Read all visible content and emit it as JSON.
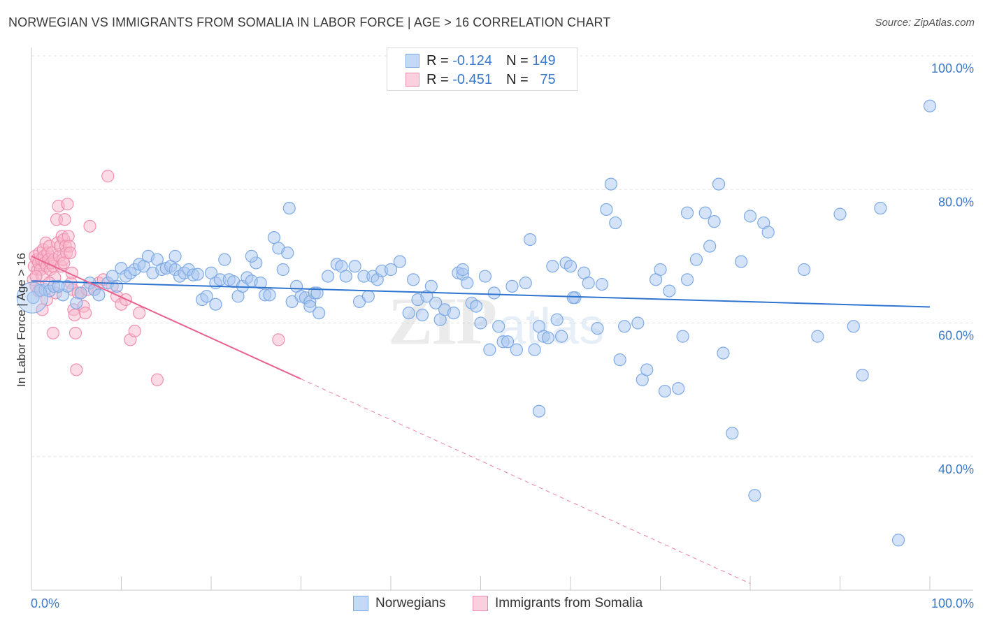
{
  "header": {
    "title": "NORWEGIAN VS IMMIGRANTS FROM SOMALIA IN LABOR FORCE | AGE > 16 CORRELATION CHART",
    "source": "Source: ZipAtlas.com"
  },
  "legend": {
    "rows": [
      {
        "r_label": "R = ",
        "r_value": "-0.124",
        "n_label": "N = ",
        "n_value": "149"
      },
      {
        "r_label": "R = ",
        "r_value": "-0.451",
        "n_label": "N = ",
        "n_value": "75"
      }
    ]
  },
  "bottom_legend": {
    "items": [
      {
        "label": "Norwegians"
      },
      {
        "label": "Immigrants from Somalia"
      }
    ]
  },
  "colors": {
    "blue_fill": "#a9c8f0",
    "blue_stroke": "#7eaae6",
    "blue_line": "#2f74cf",
    "pink_fill": "#f7b7cc",
    "pink_stroke": "#f090b0",
    "pink_line": "#e8638f",
    "grid": "#e3e3e3",
    "tick_text": "#3b78c9"
  },
  "chart_data": {
    "type": "scatter",
    "title": "NORWEGIAN VS IMMIGRANTS FROM SOMALIA IN LABOR FORCE | AGE > 16 CORRELATION CHART",
    "ylabel": "In Labor Force | Age > 16",
    "xlabel": "",
    "xlim": [
      0,
      100
    ],
    "ylim": [
      20,
      100
    ],
    "y_ticks": [
      {
        "value": 40,
        "label": "40.0%"
      },
      {
        "value": 60,
        "label": "60.0%"
      },
      {
        "value": 80,
        "label": "80.0%"
      },
      {
        "value": 100,
        "label": "100.0%"
      }
    ],
    "x_tick_labels": [
      {
        "value": 0,
        "label": "0.0%"
      },
      {
        "value": 100,
        "label": "100.0%"
      }
    ],
    "grid": true,
    "legend_placement": "top-center",
    "series": [
      {
        "name": "Norwegians",
        "R": -0.124,
        "N": 149,
        "trend": {
          "x": [
            0,
            100
          ],
          "y": [
            66.3,
            62.4
          ],
          "dashed_beyond_x": null
        },
        "points": [
          [
            0.2,
            63.8
          ],
          [
            1.0,
            64.9
          ],
          [
            1.5,
            65.0
          ],
          [
            2.0,
            64.8
          ],
          [
            2.5,
            65.5
          ],
          [
            3.5,
            64.2
          ],
          [
            4.0,
            65.5
          ],
          [
            5.0,
            63.0
          ],
          [
            5.5,
            64.5
          ],
          [
            6.5,
            66.0
          ],
          [
            7.0,
            65.0
          ],
          [
            7.5,
            64.2
          ],
          [
            8.5,
            66.0
          ],
          [
            9.0,
            67.0
          ],
          [
            9.5,
            65.5
          ],
          [
            10.0,
            68.2
          ],
          [
            10.5,
            67.0
          ],
          [
            11.0,
            67.5
          ],
          [
            11.5,
            68.0
          ],
          [
            12.0,
            68.8
          ],
          [
            12.5,
            68.5
          ],
          [
            13.0,
            70.0
          ],
          [
            13.5,
            67.5
          ],
          [
            14.0,
            69.5
          ],
          [
            14.5,
            68.0
          ],
          [
            15.0,
            68.2
          ],
          [
            15.5,
            68.5
          ],
          [
            16.0,
            68.0
          ],
          [
            16.5,
            67.0
          ],
          [
            17.0,
            67.5
          ],
          [
            17.5,
            68.0
          ],
          [
            18.0,
            67.2
          ],
          [
            18.5,
            67.3
          ],
          [
            19.0,
            63.5
          ],
          [
            19.5,
            64.0
          ],
          [
            20.0,
            67.5
          ],
          [
            20.5,
            66.0
          ],
          [
            21.0,
            66.5
          ],
          [
            21.5,
            69.5
          ],
          [
            22.0,
            66.5
          ],
          [
            22.5,
            66.2
          ],
          [
            23.0,
            64.0
          ],
          [
            23.5,
            65.5
          ],
          [
            24.0,
            66.8
          ],
          [
            24.5,
            66.3
          ],
          [
            25.0,
            69.0
          ],
          [
            25.5,
            66.0
          ],
          [
            26.0,
            64.2
          ],
          [
            26.5,
            64.2
          ],
          [
            27.0,
            72.8
          ],
          [
            27.5,
            71.2
          ],
          [
            28.0,
            68.0
          ],
          [
            28.5,
            70.5
          ],
          [
            29.0,
            63.2
          ],
          [
            29.5,
            65.5
          ],
          [
            30.0,
            64.0
          ],
          [
            30.5,
            63.8
          ],
          [
            31.0,
            63.2
          ],
          [
            31.5,
            64.5
          ],
          [
            28.7,
            77.2
          ],
          [
            31.0,
            62.5
          ],
          [
            32.0,
            61.5
          ],
          [
            33.0,
            67.0
          ],
          [
            34.0,
            68.8
          ],
          [
            34.5,
            68.5
          ],
          [
            35.0,
            67.0
          ],
          [
            36.0,
            68.5
          ],
          [
            36.5,
            63.2
          ],
          [
            37.0,
            67.0
          ],
          [
            37.5,
            64.0
          ],
          [
            38.0,
            67.0
          ],
          [
            38.5,
            66.5
          ],
          [
            39.0,
            67.8
          ],
          [
            40.0,
            68.0
          ],
          [
            41.0,
            69.2
          ],
          [
            42.0,
            61.5
          ],
          [
            42.5,
            66.5
          ],
          [
            43.0,
            63.5
          ],
          [
            43.5,
            61.2
          ],
          [
            44.0,
            64.0
          ],
          [
            44.5,
            65.5
          ],
          [
            45.0,
            63.0
          ],
          [
            45.5,
            60.5
          ],
          [
            46.0,
            62.0
          ],
          [
            47.0,
            61.5
          ],
          [
            47.5,
            67.5
          ],
          [
            48.0,
            67.3
          ],
          [
            48.5,
            66.0
          ],
          [
            49.0,
            63.0
          ],
          [
            49.5,
            62.5
          ],
          [
            50.0,
            60.0
          ],
          [
            50.5,
            67.0
          ],
          [
            51.0,
            56.0
          ],
          [
            51.5,
            64.5
          ],
          [
            52.0,
            59.5
          ],
          [
            52.5,
            57.2
          ],
          [
            53.0,
            57.2
          ],
          [
            53.5,
            65.5
          ],
          [
            54.0,
            56.0
          ],
          [
            55.0,
            66.0
          ],
          [
            55.5,
            72.5
          ],
          [
            56.0,
            56.0
          ],
          [
            56.5,
            59.5
          ],
          [
            57.0,
            58.0
          ],
          [
            57.5,
            57.8
          ],
          [
            58.0,
            68.5
          ],
          [
            58.5,
            60.5
          ],
          [
            59.0,
            58.0
          ],
          [
            59.5,
            69.0
          ],
          [
            60.0,
            68.5
          ],
          [
            60.5,
            63.8
          ],
          [
            61.5,
            67.5
          ],
          [
            62.0,
            66.0
          ],
          [
            63.0,
            59.2
          ],
          [
            63.5,
            65.8
          ],
          [
            64.0,
            77.0
          ],
          [
            64.5,
            80.8
          ],
          [
            65.0,
            75.0
          ],
          [
            65.5,
            54.5
          ],
          [
            66.0,
            59.5
          ],
          [
            67.5,
            60.0
          ],
          [
            68.0,
            51.5
          ],
          [
            68.5,
            53.0
          ],
          [
            69.5,
            66.5
          ],
          [
            70.0,
            68.0
          ],
          [
            70.5,
            49.8
          ],
          [
            71.0,
            64.8
          ],
          [
            72.0,
            50.2
          ],
          [
            72.5,
            58.0
          ],
          [
            73.0,
            66.5
          ],
          [
            74.0,
            69.5
          ],
          [
            75.0,
            76.5
          ],
          [
            75.5,
            71.5
          ],
          [
            76.0,
            75.2
          ],
          [
            76.5,
            80.8
          ],
          [
            77.0,
            55.5
          ],
          [
            78.0,
            43.5
          ],
          [
            79.0,
            69.2
          ],
          [
            80.0,
            76.0
          ],
          [
            80.5,
            34.2
          ],
          [
            81.5,
            75.0
          ],
          [
            82.0,
            73.6
          ],
          [
            73.0,
            76.5
          ],
          [
            86.0,
            68.0
          ],
          [
            87.5,
            58.0
          ],
          [
            90.0,
            76.3
          ],
          [
            91.5,
            59.5
          ],
          [
            92.5,
            52.2
          ],
          [
            94.5,
            77.2
          ],
          [
            96.5,
            27.5
          ],
          [
            100.0,
            92.5
          ],
          [
            56.5,
            46.8
          ],
          [
            48.0,
            68.0
          ],
          [
            24.5,
            70.0
          ],
          [
            16.0,
            70.0
          ],
          [
            60.3,
            63.8
          ],
          [
            31.8,
            64.5
          ],
          [
            20.5,
            62.8
          ],
          [
            3.0,
            65.5
          ]
        ]
      },
      {
        "name": "Immigrants from Somalia",
        "R": -0.451,
        "N": 75,
        "trend": {
          "x": [
            0,
            80
          ],
          "y": [
            70.0,
            21.0
          ],
          "dashed_beyond_x": 30
        },
        "points": [
          [
            0.2,
            66.5
          ],
          [
            0.3,
            68.5
          ],
          [
            0.4,
            70.0
          ],
          [
            0.5,
            65.5
          ],
          [
            0.6,
            69.5
          ],
          [
            0.7,
            68.0
          ],
          [
            0.8,
            69.0
          ],
          [
            0.9,
            70.5
          ],
          [
            1.0,
            68.0
          ],
          [
            1.1,
            69.5
          ],
          [
            1.2,
            67.0
          ],
          [
            1.3,
            71.0
          ],
          [
            1.4,
            70.0
          ],
          [
            1.5,
            69.0
          ],
          [
            1.6,
            72.0
          ],
          [
            1.7,
            68.5
          ],
          [
            1.8,
            70.5
          ],
          [
            1.9,
            69.5
          ],
          [
            2.0,
            71.5
          ],
          [
            2.1,
            68.0
          ],
          [
            2.2,
            69.0
          ],
          [
            2.3,
            70.5
          ],
          [
            2.4,
            68.5
          ],
          [
            2.5,
            69.5
          ],
          [
            2.6,
            66.8
          ],
          [
            2.7,
            64.5
          ],
          [
            2.8,
            75.5
          ],
          [
            2.9,
            72.0
          ],
          [
            3.0,
            77.5
          ],
          [
            3.1,
            70.0
          ],
          [
            3.2,
            71.5
          ],
          [
            3.3,
            68.5
          ],
          [
            3.4,
            73.0
          ],
          [
            3.5,
            69.5
          ],
          [
            3.6,
            72.5
          ],
          [
            3.7,
            75.5
          ],
          [
            3.8,
            71.5
          ],
          [
            3.9,
            70.5
          ],
          [
            4.0,
            77.8
          ],
          [
            4.1,
            73.0
          ],
          [
            4.2,
            71.5
          ],
          [
            4.3,
            70.5
          ],
          [
            4.4,
            66.0
          ],
          [
            4.5,
            67.5
          ],
          [
            4.6,
            65.0
          ],
          [
            4.7,
            62.0
          ],
          [
            4.8,
            61.2
          ],
          [
            4.9,
            58.5
          ],
          [
            5.0,
            53.0
          ],
          [
            5.2,
            64.5
          ],
          [
            5.5,
            64.5
          ],
          [
            5.8,
            62.5
          ],
          [
            6.0,
            61.5
          ],
          [
            6.2,
            65.0
          ],
          [
            6.5,
            74.5
          ],
          [
            7.0,
            65.0
          ],
          [
            7.5,
            66.0
          ],
          [
            8.0,
            66.5
          ],
          [
            8.5,
            82.0
          ],
          [
            9.0,
            65.5
          ],
          [
            9.5,
            64.0
          ],
          [
            10.0,
            62.8
          ],
          [
            10.5,
            63.5
          ],
          [
            11.0,
            57.5
          ],
          [
            11.5,
            58.8
          ],
          [
            12.0,
            61.5
          ],
          [
            14.0,
            51.5
          ],
          [
            27.5,
            57.5
          ],
          [
            2.4,
            58.5
          ],
          [
            1.7,
            63.5
          ],
          [
            3.6,
            69.0
          ],
          [
            0.8,
            64.8
          ],
          [
            1.2,
            62.0
          ],
          [
            0.5,
            67.0
          ],
          [
            2.0,
            66.0
          ]
        ]
      }
    ],
    "watermark": "ZIPatlas"
  }
}
